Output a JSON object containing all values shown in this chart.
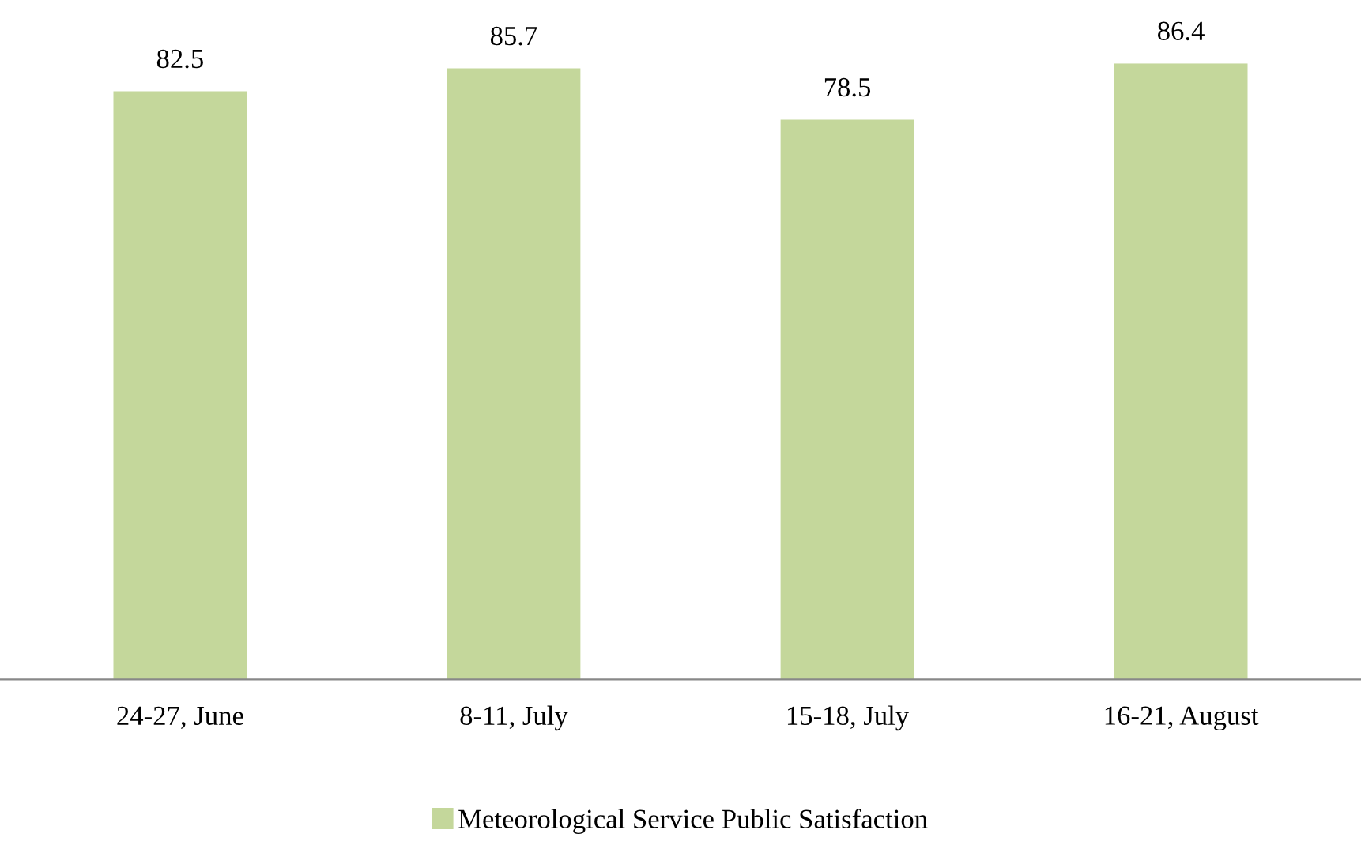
{
  "chart_data": {
    "type": "bar",
    "categories": [
      "24-27, June",
      "8-11, July",
      "15-18, July",
      "16-21, August"
    ],
    "series": [
      {
        "name": "Meteorological Service Public Satisfaction",
        "color": "#c4d79b",
        "values": [
          82.5,
          85.7,
          78.5,
          86.4
        ]
      }
    ],
    "tick_labels": "x",
    "data_labels": true,
    "legend": "bottom",
    "grid": false
  }
}
